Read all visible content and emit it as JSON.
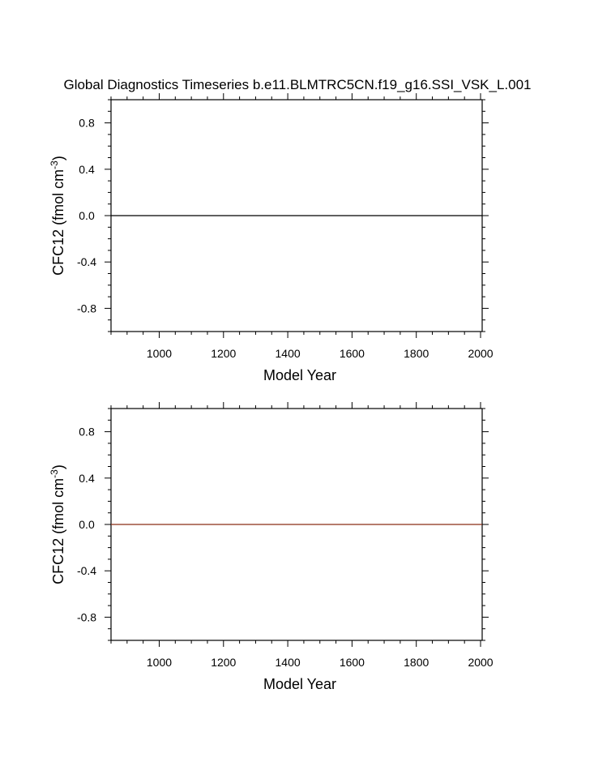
{
  "title": "Global Diagnostics Timeseries b.e11.BLMTRC5CN.f19_g16.SSI_VSK_L.001",
  "chart_data": [
    {
      "type": "line",
      "xlabel": "Model Year",
      "ylabel": "CFC12 (fmol cm",
      "ylabel_sup": "-3",
      "ylabel_close": ")",
      "xlim": [
        850,
        2005
      ],
      "ylim": [
        -1.0,
        1.0
      ],
      "xticks": [
        1000,
        1200,
        1400,
        1600,
        1800,
        2000
      ],
      "xtick_labels": [
        "1000",
        "1200",
        "1400",
        "1600",
        "1800",
        "2000"
      ],
      "yticks": [
        0.8,
        0.4,
        0.0,
        -0.4,
        -0.8
      ],
      "ytick_labels": [
        "0.8",
        "0.4",
        "0.0",
        "-0.4",
        "-0.8"
      ],
      "series": [
        {
          "x": [
            850,
            2005
          ],
          "y": [
            0.0,
            0.0
          ],
          "color": "#000000"
        }
      ]
    },
    {
      "type": "line",
      "xlabel": "Model Year",
      "ylabel": "CFC12 (fmol cm",
      "ylabel_sup": "-3",
      "ylabel_close": ")",
      "xlim": [
        850,
        2005
      ],
      "ylim": [
        -1.0,
        1.0
      ],
      "xticks": [
        1000,
        1200,
        1400,
        1600,
        1800,
        2000
      ],
      "xtick_labels": [
        "1000",
        "1200",
        "1400",
        "1600",
        "1800",
        "2000"
      ],
      "yticks": [
        0.8,
        0.4,
        0.0,
        -0.4,
        -0.8
      ],
      "ytick_labels": [
        "0.8",
        "0.4",
        "0.0",
        "-0.4",
        "-0.8"
      ],
      "series": [
        {
          "x": [
            850,
            2005
          ],
          "y": [
            0.0,
            0.0
          ],
          "color": "#8b2d14"
        }
      ]
    }
  ]
}
